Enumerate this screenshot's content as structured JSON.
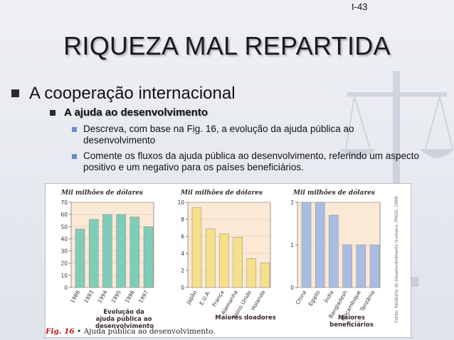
{
  "slide": {
    "number": "I-43",
    "title": "RIQUEZA MAL REPARTIDA",
    "bullet_l1": "A cooperação internacional",
    "bullet_l2": "A ajuda ao desenvolvimento",
    "bullets_l3": [
      "Descreva, com base na Fig. 16, a evolução da ajuda pública ao desenvolvimento",
      "Comente os fluxos da ajuda pública ao desenvolvimento, referindo um aspecto positivo e um negativo para os países beneficiários."
    ]
  },
  "figure": {
    "caption_num": "Fig. 16",
    "caption_text": " • Ajuda pública ao desenvolvimento.",
    "source_note": "Fonte: Relatório do Desenvolvimento Humano, PNUD, 1999."
  },
  "colors": {
    "plot_bg": "#fbe9d6",
    "teal": "#7fcdb8",
    "yellow": "#f5e08a",
    "blue": "#a9bde3"
  },
  "chart_data": [
    {
      "type": "bar",
      "ylabel": "Mil milhões de dólares",
      "xlabel": "Evolução da ajuda pública ao desenvolvimento",
      "categories": [
        "1988",
        "1993",
        "1994",
        "1995",
        "1996",
        "1997"
      ],
      "values": [
        48,
        56,
        60,
        60,
        58,
        50
      ],
      "ylim": [
        0,
        70
      ],
      "yticks": [
        0,
        10,
        20,
        30,
        40,
        50,
        60,
        70
      ],
      "color": "#7fcdb8"
    },
    {
      "type": "bar",
      "ylabel": "Mil milhões de dólares",
      "xlabel": "Maiores doadores",
      "categories": [
        "Japão",
        "E.U.A.",
        "França",
        "Alemanha",
        "Reino Unido",
        "Holanda"
      ],
      "values": [
        9.4,
        6.9,
        6.3,
        5.9,
        3.4,
        2.9
      ],
      "ylim": [
        0,
        10
      ],
      "yticks": [
        0,
        2,
        4,
        6,
        8,
        10
      ],
      "color": "#f5e08a"
    },
    {
      "type": "bar",
      "ylabel": "Mil milhões de dólares",
      "xlabel": "Maiores beneficiários",
      "categories": [
        "China",
        "Egipto",
        "Índia",
        "Bangladesh",
        "Moçambique",
        "Tanzânia"
      ],
      "values": [
        2.0,
        2.0,
        1.7,
        1.0,
        1.0,
        1.0
      ],
      "ylim": [
        0,
        2
      ],
      "yticks": [
        0,
        1,
        2
      ],
      "color": "#a9bde3"
    }
  ]
}
